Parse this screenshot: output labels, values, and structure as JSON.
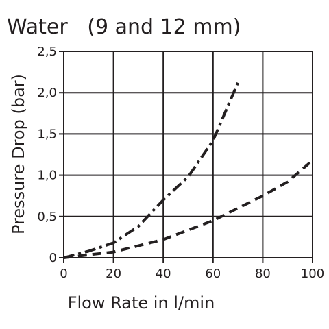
{
  "chart_data": {
    "type": "line",
    "title": "Water   (9 and 12 mm)",
    "xlabel": "Flow Rate in l/min",
    "ylabel": "Pressure Drop (bar)",
    "xlim": [
      0,
      100
    ],
    "ylim": [
      0,
      2.5
    ],
    "x_ticks": [
      0,
      20,
      40,
      60,
      80,
      100
    ],
    "x_tick_labels": [
      "0",
      "20",
      "40",
      "60",
      "80",
      "100"
    ],
    "y_ticks": [
      0,
      0.5,
      1.0,
      1.5,
      2.0,
      2.5
    ],
    "y_tick_labels": [
      "0",
      "0,5",
      "1,0",
      "1,5",
      "2,0",
      "2,5"
    ],
    "grid": true,
    "legend": "none",
    "series": [
      {
        "line_style": "dash-dot",
        "color": "#231f20",
        "x": [
          0,
          10,
          20,
          30,
          40,
          50,
          60,
          70
        ],
        "y": [
          0,
          0.08,
          0.18,
          0.38,
          0.7,
          0.98,
          1.42,
          2.12
        ]
      },
      {
        "line_style": "dashed",
        "color": "#231f20",
        "x": [
          0,
          20,
          40,
          60,
          80,
          90,
          100
        ],
        "y": [
          0,
          0.07,
          0.22,
          0.45,
          0.75,
          0.92,
          1.18
        ]
      }
    ]
  }
}
